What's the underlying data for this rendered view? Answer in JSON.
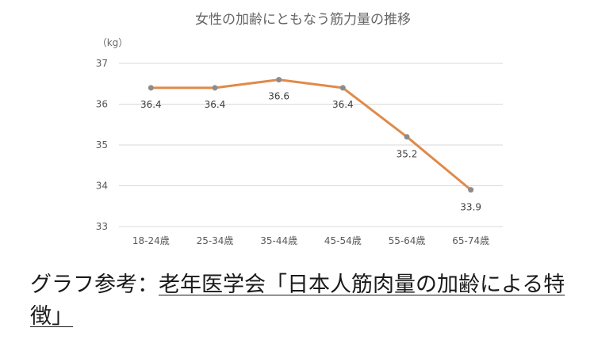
{
  "chart_data": {
    "type": "line",
    "title": "女性の加齢にともなう筋力量の推移",
    "ylabel": "（kg）",
    "xlabel": "",
    "categories": [
      "18-24歳",
      "25-34歳",
      "35-44歳",
      "45-54歳",
      "55-64歳",
      "65-74歳"
    ],
    "values": [
      36.4,
      36.4,
      36.6,
      36.4,
      35.2,
      33.9
    ],
    "data_labels": [
      "36.4",
      "36.4",
      "36.6",
      "36.4",
      "35.2",
      "33.9"
    ],
    "ylim": [
      33,
      37
    ],
    "yticks": [
      33,
      34,
      35,
      36,
      37
    ],
    "ytick_labels": [
      "33",
      "34",
      "35",
      "36",
      "37"
    ],
    "grid": true,
    "line_color": "#e08a4a",
    "marker_color": "#8c8c8c"
  },
  "caption": {
    "prefix": "グラフ参考：",
    "reference": "老年医学会「日本人筋肉量の加齢による特徴」"
  }
}
